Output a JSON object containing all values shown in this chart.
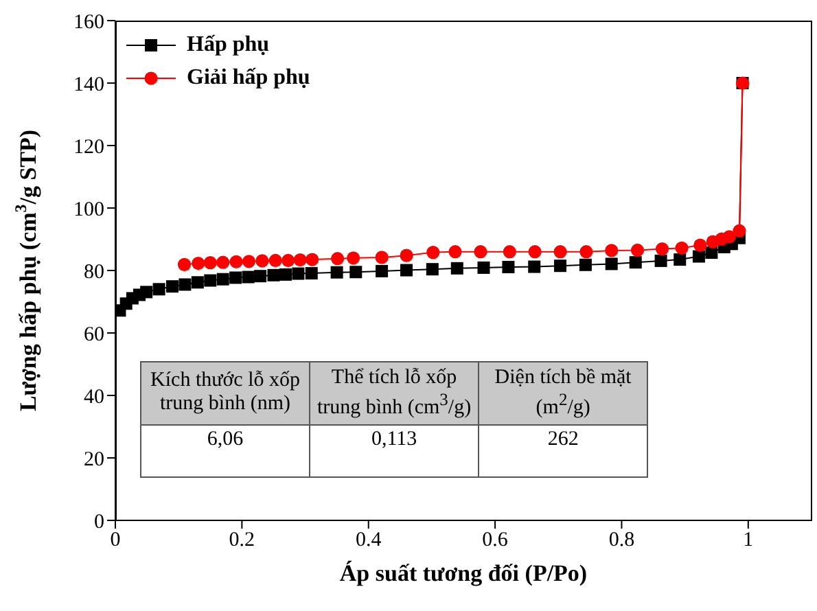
{
  "chart_data": {
    "type": "line",
    "xlabel": "Áp suất tương đối (P/Po)",
    "ylabel": "Lượng hấp phụ (cm$^{3}$/g STP)",
    "xlim": [
      0,
      1.1
    ],
    "xticks": [
      0,
      0.2,
      0.4,
      0.6,
      0.8,
      1.0
    ],
    "ylim": [
      0,
      160
    ],
    "yticks": [
      0,
      20,
      40,
      60,
      80,
      100,
      120,
      140,
      160
    ],
    "grid": false,
    "legend": "top left",
    "line_style": "solid",
    "series": [
      {
        "name": "Hấp phụ",
        "marker": "square",
        "color": "#000000",
        "x": [
          0.007,
          0.017,
          0.027,
          0.038,
          0.049,
          0.069,
          0.09,
          0.11,
          0.13,
          0.15,
          0.17,
          0.19,
          0.21,
          0.229,
          0.25,
          0.269,
          0.289,
          0.31,
          0.35,
          0.38,
          0.421,
          0.46,
          0.501,
          0.54,
          0.582,
          0.621,
          0.662,
          0.703,
          0.743,
          0.784,
          0.822,
          0.862,
          0.892,
          0.922,
          0.942,
          0.962,
          0.974,
          0.986,
          0.991
        ],
        "values": [
          67.2,
          69.4,
          71.1,
          72.2,
          73.1,
          74.0,
          74.9,
          75.5,
          76.2,
          76.8,
          77.2,
          77.7,
          77.9,
          78.2,
          78.5,
          78.7,
          79.0,
          79.1,
          79.4,
          79.5,
          79.8,
          80.1,
          80.4,
          80.7,
          80.9,
          81.1,
          81.2,
          81.5,
          81.8,
          82.1,
          82.6,
          83.1,
          83.5,
          84.5,
          85.7,
          87.5,
          88.5,
          90.4,
          140
        ]
      },
      {
        "name": "Giải hấp phụ",
        "marker": "circle",
        "color": "#ff0000",
        "x": [
          0.109,
          0.131,
          0.15,
          0.17,
          0.191,
          0.211,
          0.232,
          0.253,
          0.273,
          0.292,
          0.311,
          0.351,
          0.376,
          0.421,
          0.46,
          0.502,
          0.537,
          0.577,
          0.623,
          0.663,
          0.703,
          0.744,
          0.784,
          0.825,
          0.864,
          0.895,
          0.924,
          0.944,
          0.958,
          0.97,
          0.986,
          0.991
        ],
        "values": [
          81.9,
          82.3,
          82.5,
          82.6,
          82.8,
          82.9,
          83.1,
          83.2,
          83.2,
          83.4,
          83.5,
          83.8,
          84.0,
          84.2,
          84.8,
          85.8,
          86.0,
          86.0,
          86.0,
          86.0,
          86.0,
          86.0,
          86.4,
          86.5,
          86.9,
          87.2,
          88.1,
          89.2,
          90.1,
          90.8,
          92.7,
          140
        ]
      }
    ],
    "annotations": [
      "Kích thước lỗ xốp trung bình (nm)",
      "Thể tích lỗ xốp trung bình (cm$^{3}$/g)",
      "Diện tích bề mặt (m$^{2}$/g)",
      "6,06",
      "0,113",
      "262"
    ]
  }
}
